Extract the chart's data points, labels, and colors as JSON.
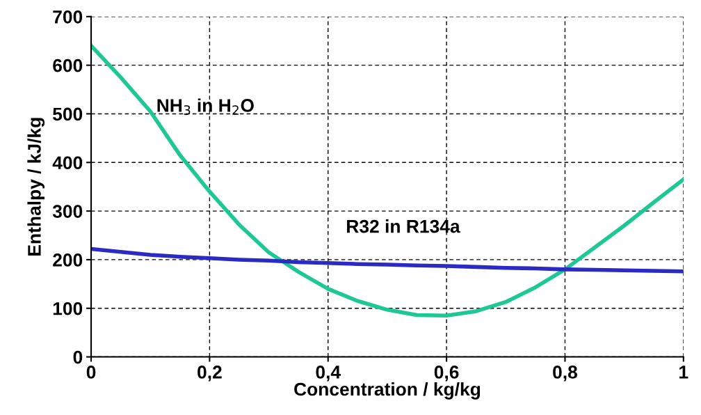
{
  "chart_data": {
    "type": "line",
    "xlabel": "Concentration / kg/kg",
    "ylabel": "Enthalpy / kJ/kg",
    "x": [
      0,
      0.05,
      0.1,
      0.15,
      0.2,
      0.25,
      0.3,
      0.35,
      0.4,
      0.45,
      0.5,
      0.55,
      0.6,
      0.65,
      0.7,
      0.75,
      0.8,
      0.85,
      0.9,
      0.95,
      1.0
    ],
    "series": [
      {
        "color": "#1ec896",
        "values": [
          640,
          575,
          505,
          415,
          340,
          272,
          215,
          175,
          140,
          115,
          97,
          86,
          85,
          94,
          113,
          143,
          180,
          225,
          270,
          318,
          365
        ]
      },
      {
        "color": "#2a2ac4",
        "values": [
          222,
          216,
          210,
          206,
          203,
          200,
          198,
          195,
          193,
          191,
          190,
          188,
          187,
          185,
          183,
          182,
          180,
          179,
          178,
          177,
          176
        ]
      }
    ],
    "annotations": [
      "NH$_{3}$ in H$_{2}$O",
      "R32 in R134a"
    ],
    "xlim": [
      0,
      1
    ],
    "ylim": [
      0,
      700
    ],
    "xticks": [
      0,
      {
        "value": 0.2,
        "label": "0,2"
      },
      {
        "value": 0.4,
        "label": "0,4"
      },
      {
        "value": 0.6,
        "label": "0,6"
      },
      {
        "value": 0.8,
        "label": "0,8"
      },
      1
    ],
    "yticks": [
      0,
      100,
      200,
      300,
      400,
      500,
      600,
      700
    ],
    "grid": true,
    "line_style": "solid",
    "marker": "none",
    "legend": false
  }
}
